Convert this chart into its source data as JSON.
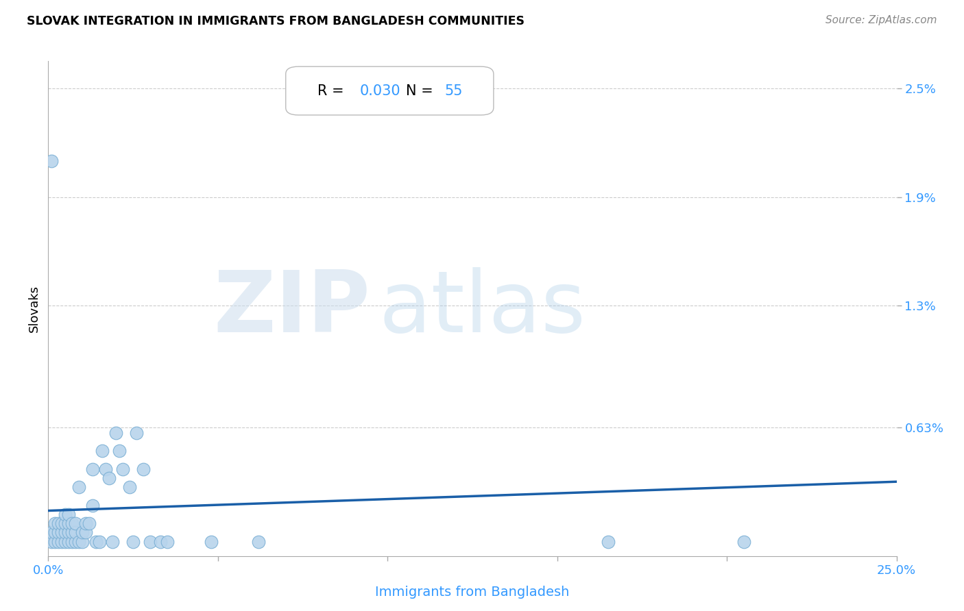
{
  "title": "SLOVAK INTEGRATION IN IMMIGRANTS FROM BANGLADESH COMMUNITIES",
  "source": "Source: ZipAtlas.com",
  "xlabel": "Immigrants from Bangladesh",
  "ylabel": "Slovaks",
  "R_value": "0.030",
  "N_value": "55",
  "xlim": [
    0.0,
    0.25
  ],
  "ylim": [
    -0.0008,
    0.0265
  ],
  "ytick_labels": [
    "2.5%",
    "1.9%",
    "1.3%",
    "0.63%"
  ],
  "ytick_values": [
    0.025,
    0.019,
    0.013,
    0.0063
  ],
  "scatter_color": "#b8d4ec",
  "scatter_edge_color": "#7aafd4",
  "line_color": "#1a5fa8",
  "background_color": "#ffffff",
  "grid_color": "#cccccc",
  "annotation_box_color": "#dddddd",
  "tick_label_color": "#3399ff",
  "xlabel_color": "#3399ff",
  "title_color": "#000000",
  "source_color": "#888888",
  "regression_y0": 0.0017,
  "regression_y1": 0.0033,
  "scatter_x": [
    0.001,
    0.001,
    0.002,
    0.002,
    0.002,
    0.003,
    0.003,
    0.003,
    0.004,
    0.004,
    0.004,
    0.005,
    0.005,
    0.005,
    0.005,
    0.006,
    0.006,
    0.006,
    0.006,
    0.007,
    0.007,
    0.007,
    0.008,
    0.008,
    0.008,
    0.009,
    0.009,
    0.01,
    0.01,
    0.011,
    0.011,
    0.012,
    0.013,
    0.013,
    0.014,
    0.015,
    0.016,
    0.017,
    0.018,
    0.019,
    0.02,
    0.021,
    0.022,
    0.024,
    0.025,
    0.026,
    0.028,
    0.03,
    0.033,
    0.035,
    0.048,
    0.062,
    0.165,
    0.205,
    0.001
  ],
  "scatter_y": [
    0.0,
    0.0005,
    0.0,
    0.0005,
    0.001,
    0.0,
    0.0005,
    0.001,
    0.0,
    0.0005,
    0.001,
    0.0,
    0.0005,
    0.001,
    0.0015,
    0.0,
    0.0005,
    0.001,
    0.0015,
    0.0,
    0.0005,
    0.001,
    0.0,
    0.0005,
    0.001,
    0.0,
    0.003,
    0.0,
    0.0005,
    0.0005,
    0.001,
    0.001,
    0.002,
    0.004,
    0.0,
    0.0,
    0.005,
    0.004,
    0.0035,
    0.0,
    0.006,
    0.005,
    0.004,
    0.003,
    0.0,
    0.006,
    0.004,
    0.0,
    0.0,
    0.0,
    0.0,
    0.0,
    0.0,
    0.0,
    0.021
  ]
}
